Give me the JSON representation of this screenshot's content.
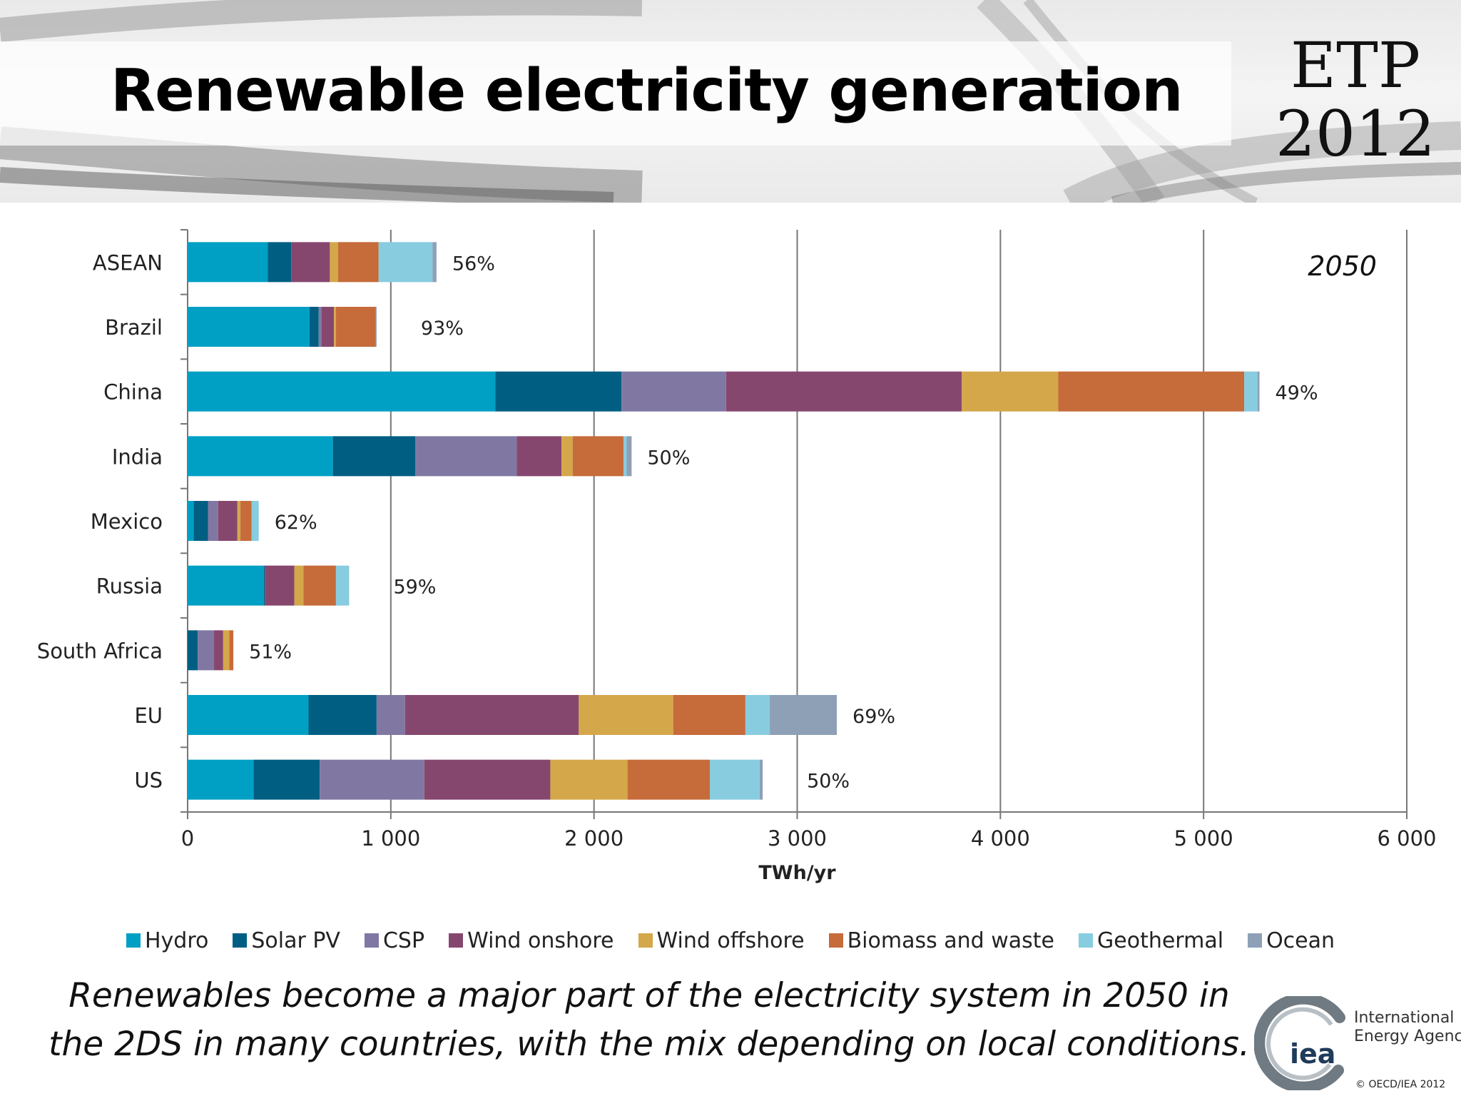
{
  "slide": {
    "title": "Renewable electricity generation",
    "badge_line1": "ETP",
    "badge_line2": "2012",
    "caption_line1": "Renewables become a major part of the electricity system in 2050 in",
    "caption_line2": "the 2DS in many countries, with the mix depending on local conditions.",
    "org_line1": "International",
    "org_line2": "Energy Agency",
    "logo_text": "iea",
    "copyright": "© OECD/IEA 2012"
  },
  "chart_data": {
    "type": "bar",
    "orientation": "horizontal",
    "stacked": true,
    "annotation": "2050",
    "xlabel": "TWh/yr",
    "ylabel": "",
    "xlim": [
      0,
      6000
    ],
    "xticks": [
      0,
      1000,
      2000,
      3000,
      4000,
      5000,
      6000
    ],
    "xtick_labels": [
      "0",
      "1 000",
      "2 000",
      "3 000",
      "4 000",
      "5 000",
      "6 000"
    ],
    "grid": "vertical",
    "legend_position": "bottom",
    "categories": [
      "ASEAN",
      "Brazil",
      "China",
      "India",
      "Mexico",
      "Russia",
      "South Africa",
      "EU",
      "US"
    ],
    "share_labels": [
      "56%",
      "93%",
      "49%",
      "50%",
      "62%",
      "59%",
      "51%",
      "69%",
      "50%"
    ],
    "series": [
      {
        "name": "Hydro",
        "color": "#00a0c4",
        "values": [
          395,
          600,
          1515,
          715,
          30,
          375,
          0,
          595,
          325
        ]
      },
      {
        "name": "Solar PV",
        "color": "#005e82",
        "values": [
          115,
          45,
          620,
          405,
          70,
          5,
          50,
          335,
          325
        ]
      },
      {
        "name": "CSP",
        "color": "#8078a3",
        "values": [
          0,
          15,
          515,
          500,
          50,
          0,
          80,
          140,
          515
        ]
      },
      {
        "name": "Wind onshore",
        "color": "#86476f",
        "values": [
          190,
          60,
          1160,
          220,
          95,
          145,
          45,
          855,
          620
        ]
      },
      {
        "name": "Wind offshore",
        "color": "#d4a74a",
        "values": [
          40,
          10,
          475,
          55,
          15,
          45,
          30,
          465,
          380
        ]
      },
      {
        "name": "Biomass and waste",
        "color": "#c66b3a",
        "values": [
          200,
          195,
          915,
          250,
          55,
          160,
          20,
          355,
          405
        ]
      },
      {
        "name": "Geothermal",
        "color": "#88cce0",
        "values": [
          265,
          0,
          65,
          15,
          35,
          65,
          0,
          120,
          245
        ]
      },
      {
        "name": "Ocean",
        "color": "#8da0b6",
        "values": [
          20,
          5,
          10,
          25,
          0,
          0,
          0,
          330,
          15
        ]
      }
    ]
  }
}
